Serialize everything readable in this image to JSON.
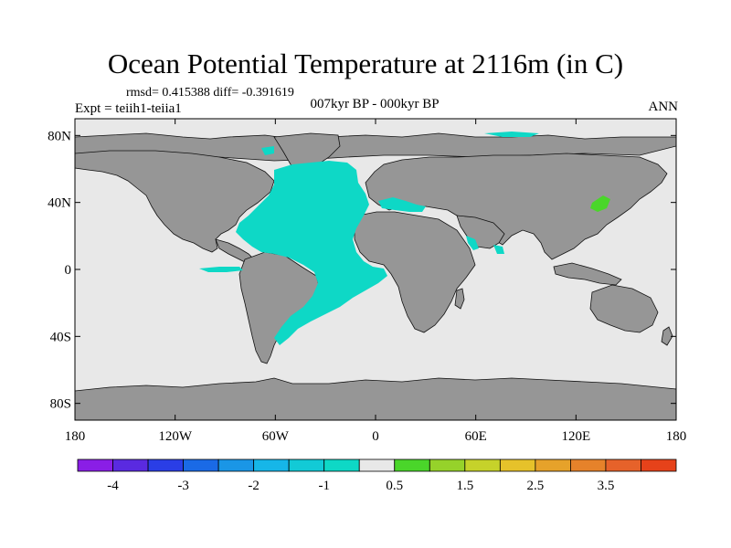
{
  "chart_data": {
    "type": "heatmap",
    "title": "Ocean Potential Temperature at 2116m (in C)",
    "stats_label": "rmsd= 0.415388 diff= -0.391619",
    "experiment_label": "Expt = teiih1-teiia1",
    "period_label": "007kyr BP - 000kyr BP",
    "season_label": "ANN",
    "x_ticks": [
      "180",
      "120W",
      "60W",
      "0",
      "60E",
      "120E",
      "180"
    ],
    "y_ticks": [
      "80N",
      "40N",
      "0",
      "40S",
      "80S"
    ],
    "xlim": [
      -180,
      180
    ],
    "ylim": [
      -90,
      90
    ],
    "colorbar": {
      "colors": [
        "#8a1ee6",
        "#5a2ae0",
        "#2a3ee6",
        "#1a6ae6",
        "#1a96e6",
        "#16b6e8",
        "#12cad6",
        "#0ed8c6",
        "#e8e8e8",
        "#4ad62a",
        "#96d22a",
        "#c6d22a",
        "#e6c22a",
        "#e6a22a",
        "#e6822a",
        "#e6622a",
        "#e6421a"
      ],
      "labels": [
        "-4",
        "-3",
        "-2",
        "-1",
        "0.5",
        "1.5",
        "2.5",
        "3.5"
      ]
    },
    "land_color": "#969696",
    "ocean_no_change_color": "#e8e8e8",
    "change_color": "#0ed8c6"
  }
}
